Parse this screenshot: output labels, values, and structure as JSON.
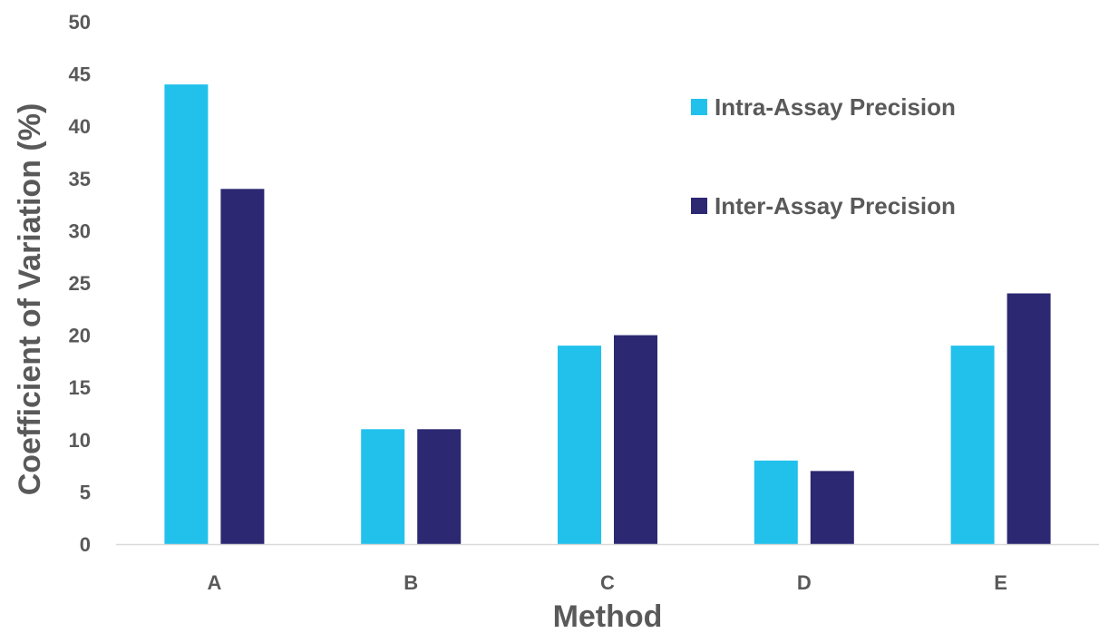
{
  "chart_data": {
    "type": "bar",
    "title": "",
    "xlabel": "Method",
    "ylabel": "Coefficient of Variation (%)",
    "categories": [
      "A",
      "B",
      "C",
      "D",
      "E"
    ],
    "series": [
      {
        "name": "Intra-Assay Precision",
        "color": "#21C1EC",
        "values": [
          44,
          11,
          19,
          8,
          19
        ]
      },
      {
        "name": "Inter-Assay Precision",
        "color": "#2C2872",
        "values": [
          34,
          11,
          20,
          7,
          24
        ]
      }
    ],
    "ylim": [
      0,
      50
    ],
    "yticks": [
      0,
      5,
      10,
      15,
      20,
      25,
      30,
      35,
      40,
      45,
      50
    ],
    "grid": false,
    "legend_position": "top-right",
    "axis_color": "#D9D9D9",
    "text_color": "#595959"
  }
}
